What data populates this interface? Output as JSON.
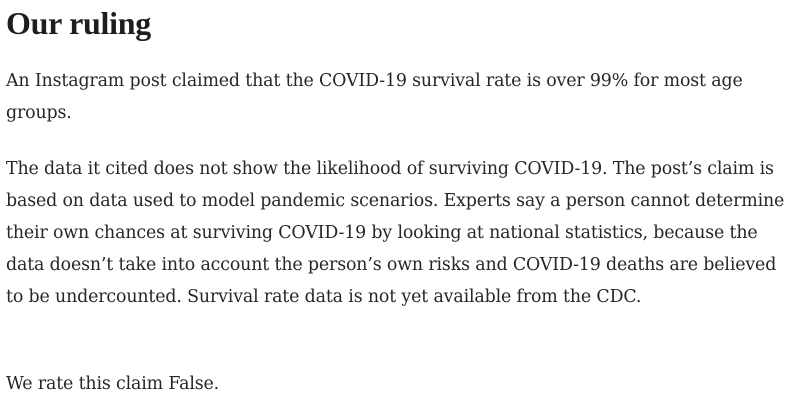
{
  "ruling": {
    "heading": "Our ruling",
    "paragraphs": [
      "An Instagram post claimed that the COVID-19 survival rate is over 99% for most age groups.",
      "The data it cited does not show the likelihood of surviving COVID-19. The post’s claim is based on data used to model pandemic scenarios. Experts say a person cannot determine their own chances at surviving COVID-19 by looking at national statistics, because the data doesn’t take into account the person’s own risks and COVID-19 deaths are believed to be undercounted.  Survival rate data is not yet available from the CDC.",
      "We rate this claim False."
    ]
  }
}
